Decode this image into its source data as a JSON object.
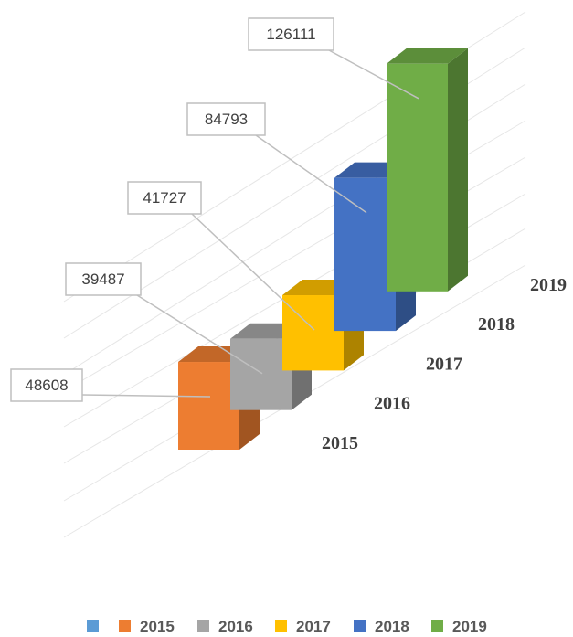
{
  "chart_data": {
    "type": "bar3d",
    "categories": [
      "2015",
      "2016",
      "2017",
      "2018",
      "2019"
    ],
    "values": [
      48608,
      39487,
      41727,
      84793,
      126111
    ],
    "series_names": [
      "2015",
      "2016",
      "2017",
      "2018",
      "2019"
    ],
    "colors": [
      "#ED7D31",
      "#A5A5A5",
      "#FFC000",
      "#4472C4",
      "#70AD47"
    ],
    "grid": true
  }
}
